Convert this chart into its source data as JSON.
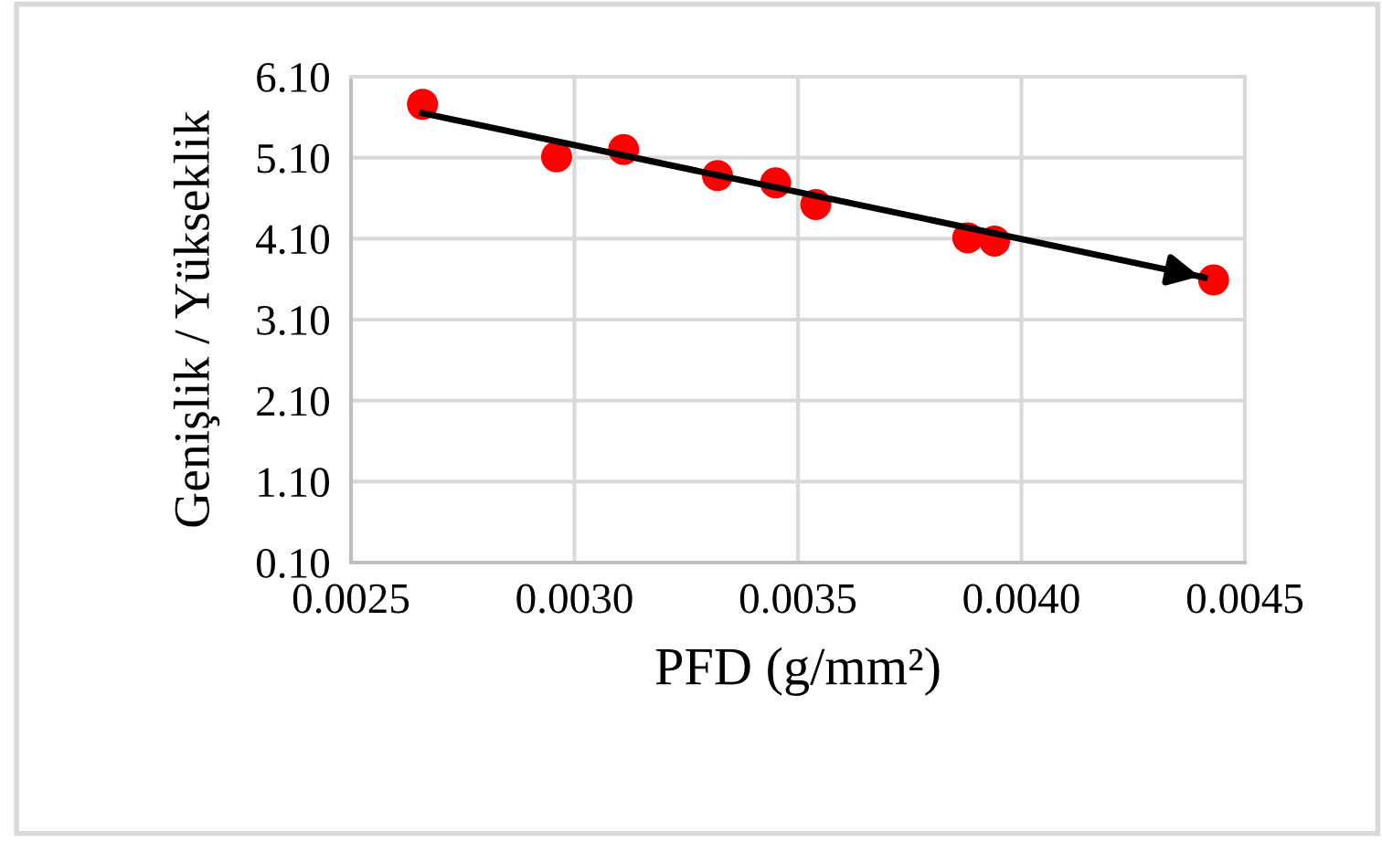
{
  "chart_data": {
    "type": "scatter",
    "xlabel": "PFD (g/mm²)",
    "ylabel": "Genişlik / Yükseklik",
    "series": [
      {
        "marker": "circle",
        "color": "#ff0000",
        "x": [
          0.00266,
          0.00296,
          0.00311,
          0.00332,
          0.00345,
          0.00354,
          0.00388,
          0.00394,
          0.00443
        ],
        "values": [
          5.76,
          5.11,
          5.2,
          4.88,
          4.79,
          4.52,
          4.11,
          4.07,
          3.59
        ]
      },
      {
        "type": "line",
        "color": "#000000",
        "x": [
          0.00266,
          0.00441
        ],
        "values": [
          5.65,
          3.62
        ]
      }
    ],
    "grid": true,
    "legend": false,
    "xlim": [
      0.0025,
      0.0045
    ],
    "ylim": [
      0.1,
      6.1
    ],
    "xticks": [
      {
        "value": 0.0025,
        "label": "0.0025"
      },
      {
        "value": 0.003,
        "label": "0.0030"
      },
      {
        "value": 0.0035,
        "label": "0.0035"
      },
      {
        "value": 0.004,
        "label": "0.0040"
      },
      {
        "value": 0.0045,
        "label": "0.0045"
      }
    ],
    "yticks": [
      {
        "value": 0.1,
        "label": "0.10"
      },
      {
        "value": 1.1,
        "label": "1.10"
      },
      {
        "value": 2.1,
        "label": "2.10"
      },
      {
        "value": 3.1,
        "label": "3.10"
      },
      {
        "value": 4.1,
        "label": "4.10"
      },
      {
        "value": 5.1,
        "label": "5.10"
      },
      {
        "value": 6.1,
        "label": "6.10"
      }
    ]
  }
}
